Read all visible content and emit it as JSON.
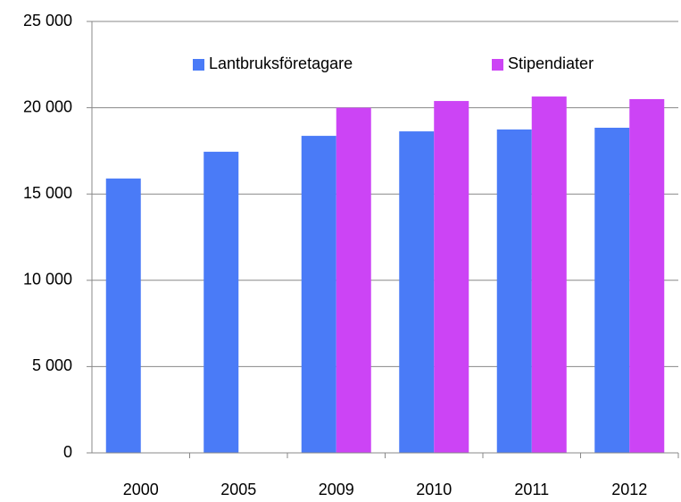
{
  "chart_data": {
    "type": "bar",
    "categories": [
      "2000",
      "2005",
      "2009",
      "2010",
      "2011",
      "2012"
    ],
    "series": [
      {
        "name": "Lantbruksföretagare",
        "color": "#4a7bf7",
        "values": [
          15900,
          17450,
          18370,
          18630,
          18740,
          18840
        ]
      },
      {
        "name": "Stipendiater",
        "color": "#cc44f5",
        "values": [
          null,
          null,
          20000,
          20390,
          20650,
          20500
        ]
      }
    ],
    "ylim": [
      0,
      25000
    ],
    "yticks": [
      {
        "value": 0,
        "label": "0"
      },
      {
        "value": 5000,
        "label": "5 000"
      },
      {
        "value": 10000,
        "label": "10 000"
      },
      {
        "value": 15000,
        "label": "15 000"
      },
      {
        "value": 20000,
        "label": "20 000"
      },
      {
        "value": 25000,
        "label": "25 000"
      }
    ],
    "grid": true,
    "legend": "top"
  }
}
